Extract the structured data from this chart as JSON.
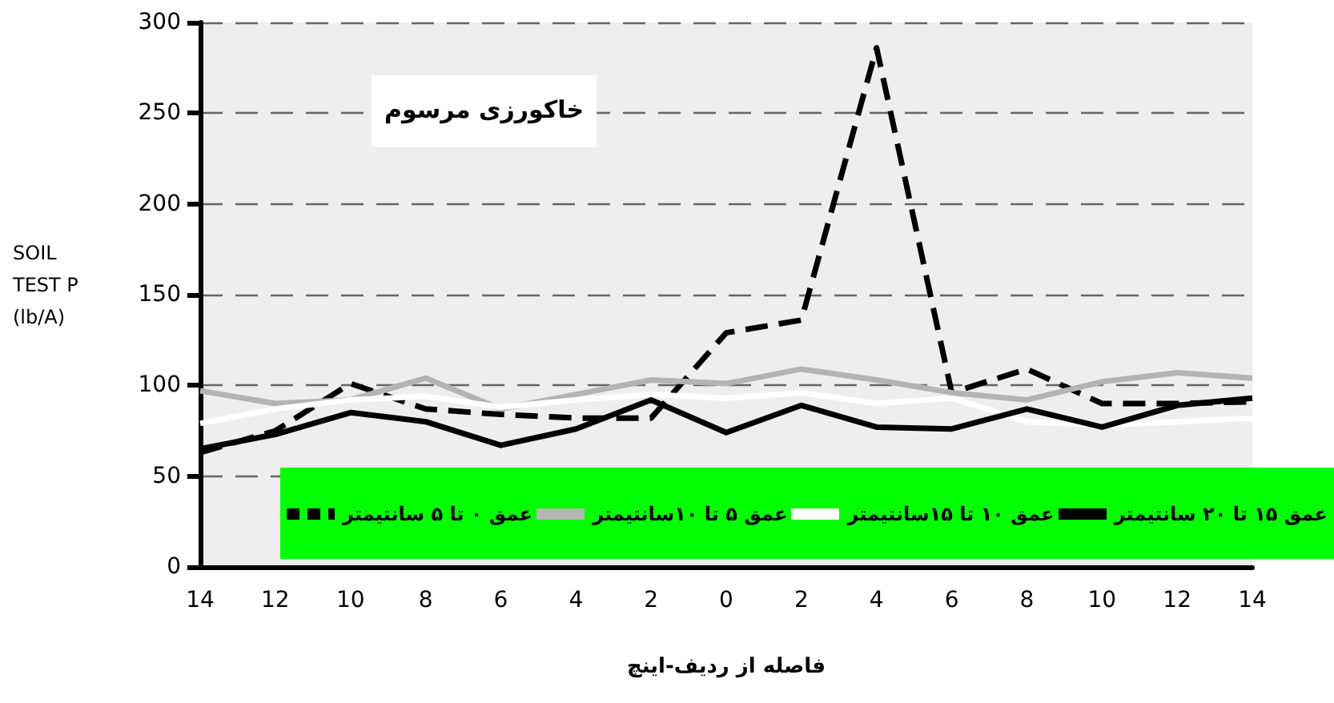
{
  "chart_data": {
    "type": "line",
    "title": "خاکورزی مرسوم",
    "ylabel": "SOIL TEST P (lb/A)",
    "xlabel": "فاصله از ردیف-اینچ",
    "categories": [
      "14",
      "12",
      "10",
      "8",
      "6",
      "4",
      "2",
      "0",
      "2",
      "4",
      "6",
      "8",
      "10",
      "12",
      "14"
    ],
    "ylim": [
      0,
      300
    ],
    "yticks": [
      0,
      50,
      100,
      150,
      200,
      250,
      300
    ],
    "grid": "y",
    "legend": "bottom",
    "marker": "none",
    "series": [
      {
        "name": "عمق ۰ تا ۵ سانتیمتر",
        "color": "#000000",
        "line_style": "dashed",
        "values": [
          63,
          75,
          101,
          87,
          84,
          82,
          82,
          129,
          136,
          286,
          96,
          109,
          90,
          90,
          91
        ]
      },
      {
        "name": "عمق ۵ تا ۱۰سانتیمتر",
        "color": "#b4b4b4",
        "line_style": "solid",
        "values": [
          97,
          90,
          92,
          104,
          87,
          95,
          103,
          101,
          109,
          103,
          96,
          92,
          102,
          107,
          104
        ]
      },
      {
        "name": "عمق ۱۰ تا ۱۵سانتیمتر",
        "color": "#ffffff",
        "line_style": "solid",
        "values": [
          79,
          87,
          92,
          94,
          88,
          92,
          95,
          93,
          96,
          90,
          93,
          80,
          78,
          80,
          82
        ]
      },
      {
        "name": "عمق ۱۵ تا ۲۰ سانتیمتر",
        "color": "#000000",
        "line_style": "solid",
        "values": [
          65,
          73,
          85,
          80,
          67,
          76,
          92,
          74,
          89,
          77,
          76,
          87,
          77,
          89,
          93
        ]
      }
    ]
  }
}
